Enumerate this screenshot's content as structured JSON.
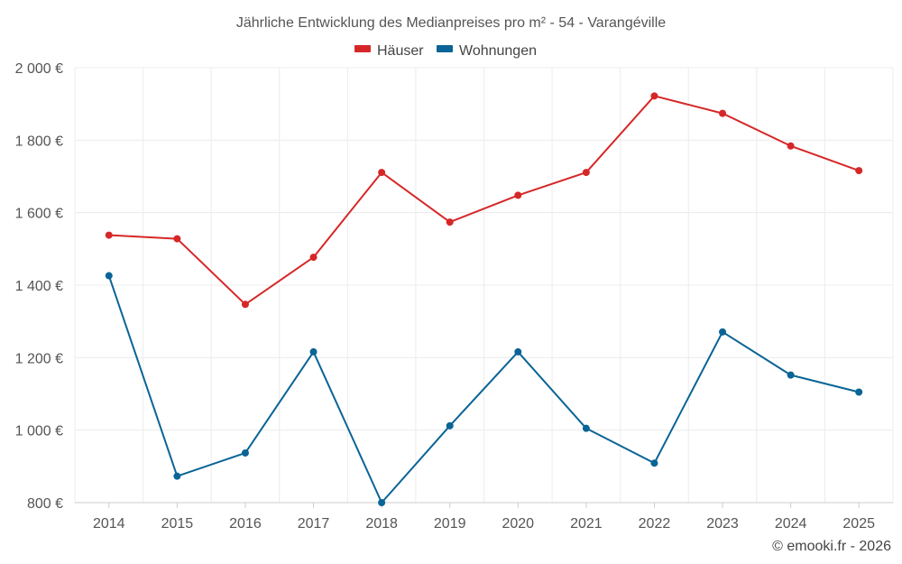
{
  "chart_data": {
    "type": "line",
    "title": "Jährliche Entwicklung des Medianpreises pro m² - 54 - Varangéville",
    "categories": [
      "2014",
      "2015",
      "2016",
      "2017",
      "2018",
      "2019",
      "2020",
      "2021",
      "2022",
      "2023",
      "2024",
      "2025"
    ],
    "series": [
      {
        "name": "Häuser",
        "color": "#d62728",
        "values": [
          1538,
          1528,
          1347,
          1477,
          1711,
          1574,
          1648,
          1711,
          1922,
          1874,
          1784,
          1716
        ]
      },
      {
        "name": "Wohnungen",
        "color": "#0a6496",
        "values": [
          1426,
          873,
          937,
          1216,
          800,
          1012,
          1216,
          1005,
          909,
          1271,
          1152,
          1105
        ]
      }
    ],
    "ylim": [
      800,
      2000
    ],
    "yticks": [
      800,
      1000,
      1200,
      1400,
      1600,
      1800,
      2000
    ],
    "ytick_labels": [
      "800 €",
      "1 000 €",
      "1 200 €",
      "1 400 €",
      "1 600 €",
      "1 800 €",
      "2 000 €"
    ],
    "xlabel": "",
    "ylabel": "",
    "legend_position": "top-center",
    "grid": true
  },
  "credit": "© emooki.fr - 2026"
}
